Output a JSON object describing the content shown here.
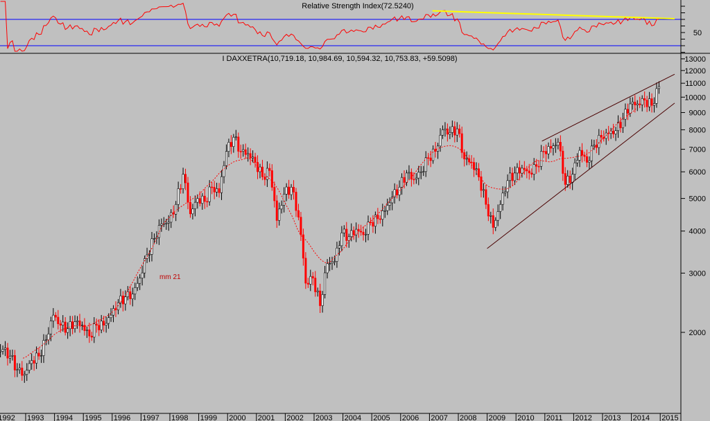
{
  "chart_data": {
    "type": "candlestick",
    "symbol_label": "I DAXXETRA(10,719.18, 10,984.69, 10,594.32, 10,753.83, +59.5098)",
    "rsi_label": "Relative Strength Index(72.5240)",
    "rsi_levels": [
      70,
      30
    ],
    "rsi_tick_label": "50",
    "ma_label": "mm 21",
    "ma_period": 21,
    "start_year": 1992,
    "interval": "quarterly closes (interpolated monthly)",
    "x_ticks": [
      "1992",
      "1993",
      "1994",
      "1995",
      "1996",
      "1997",
      "1998",
      "1999",
      "2000",
      "2001",
      "2002",
      "2003",
      "2004",
      "2005",
      "2006",
      "2007",
      "2008",
      "2009",
      "2010",
      "2011",
      "2012",
      "2013",
      "2014",
      "2015"
    ],
    "y_ticks": [
      "13000",
      "12000",
      "11000",
      "10000",
      "9000",
      "8000",
      "7000",
      "6000",
      "5000",
      "4000",
      "3000",
      "2000"
    ],
    "y_scale": "log",
    "ylim": [
      1350,
      13500
    ],
    "closes_quarterly": [
      1780,
      1700,
      1550,
      1500,
      1650,
      1700,
      1900,
      2250,
      2100,
      2050,
      2150,
      2100,
      1950,
      2100,
      2100,
      2250,
      2450,
      2550,
      2600,
      2900,
      3400,
      3800,
      4200,
      4250,
      4800,
      5900,
      4500,
      5000,
      4900,
      5400,
      5200,
      6900,
      7600,
      6900,
      6800,
      6400,
      5800,
      6050,
      4300,
      5150,
      5400,
      4400,
      2800,
      2900,
      2400,
      3200,
      3250,
      3950,
      3850,
      4050,
      3900,
      4250,
      4350,
      4600,
      5050,
      5400,
      5950,
      5700,
      6000,
      6600,
      6900,
      8000,
      7850,
      8050,
      6550,
      6400,
      5800,
      4800,
      4100,
      4800,
      5650,
      5950,
      6150,
      5950,
      6230,
      6900,
      7050,
      7350,
      5500,
      5900,
      6950,
      6400,
      7200,
      7600,
      7800,
      7950,
      8600,
      9550,
      9550,
      9800,
      9450,
      10753.83
    ],
    "trendlines": [
      {
        "name": "upper",
        "from": {
          "year": 2010.9,
          "value": 7400
        },
        "to": {
          "year": 2015.5,
          "value": 11700
        }
      },
      {
        "name": "lower",
        "from": {
          "year": 2009.0,
          "value": 3550
        },
        "to": {
          "year": 2015.5,
          "value": 9600
        }
      }
    ],
    "rsi_trendline": {
      "from": {
        "year": 2007.1,
        "rsi": 83
      },
      "to": {
        "year": 2015.5,
        "rsi": 71
      }
    },
    "colors": {
      "up": "#000000",
      "down": "#ff0000",
      "ma": "#ff0000",
      "rsi": "#ff0000",
      "rsi_levels": "#0000ff",
      "rsi_trend": "#ffff00",
      "trend": "#4a0000",
      "bg": "#c0c0c0"
    }
  }
}
